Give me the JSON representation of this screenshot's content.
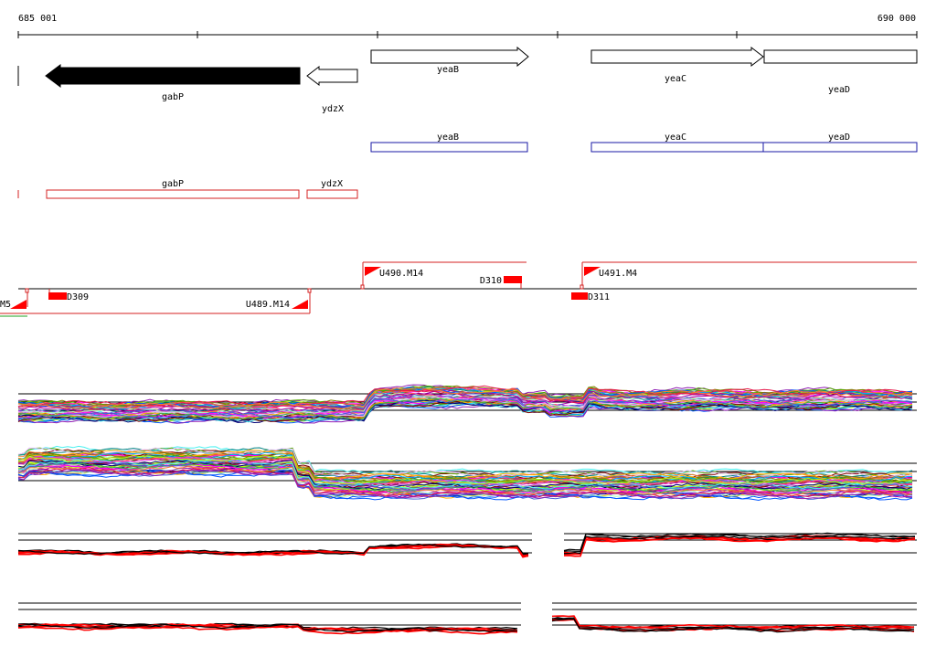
{
  "coordinates": {
    "start_label": "685 001",
    "end_label": "690 000"
  },
  "colors": {
    "axis": "#000000",
    "gene_filled": "#000000",
    "gene_outline": "#000000",
    "blue_track": "#1a1aa6",
    "red_track": "#d42020",
    "marker": "#ff0000",
    "profile_highlight": "#ff0000"
  },
  "genes": [
    {
      "name": "gabP",
      "strand": "-",
      "style": "filled"
    },
    {
      "name": "ydzX",
      "strand": "-",
      "style": "outline"
    },
    {
      "name": "yeaB",
      "strand": "+",
      "style": "outline"
    },
    {
      "name": "yeaC",
      "strand": "+",
      "style": "outline"
    },
    {
      "name": "yeaD",
      "strand": "+",
      "style": "outline"
    }
  ],
  "blue_features": [
    "yeaB",
    "yeaC",
    "yeaD"
  ],
  "red_features": [
    "gabP",
    "ydzX"
  ],
  "transcription_units": [
    "U490.M14",
    "U491.M4",
    "U489.M14",
    "M5"
  ],
  "terminators": [
    "D310",
    "D309",
    "D311"
  ]
}
